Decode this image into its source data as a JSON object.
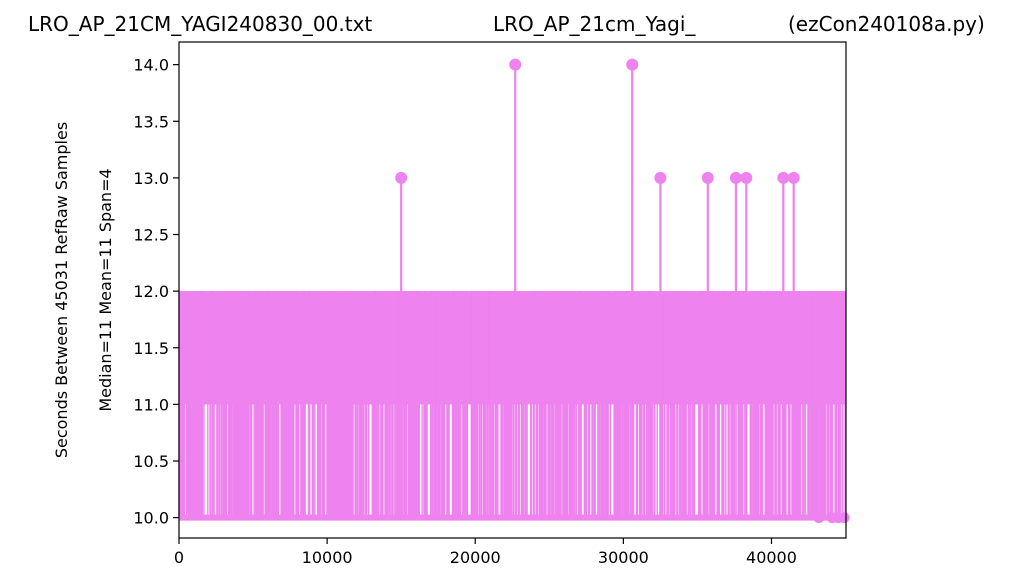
{
  "header": {
    "title_left": "LRO_AP_21CM_YAGI240830_00.txt",
    "title_center": "LRO_AP_21cm_Yagi_",
    "title_right": "(ezCon240108a.py)"
  },
  "colors": {
    "series": "#ee82ee",
    "axis": "#000000",
    "background": "#ffffff"
  },
  "chart_data": {
    "type": "line",
    "title": "LRO_AP_21CM_YAGI240830_00.txt LRO_AP_21cm_Yagi_ (ezCon240108a.py)",
    "ylabel_line1": "Seconds Between 45031 RefRaw Samples",
    "ylabel_line2": "Median=11  Mean=11  Span=4",
    "xlabel": "",
    "xlim": [
      0,
      45031
    ],
    "ylim": [
      9.82,
      14.2
    ],
    "xticks": [
      0,
      10000,
      20000,
      30000,
      40000
    ],
    "xtick_labels": [
      "0",
      "10000",
      "20000",
      "30000",
      "40000"
    ],
    "yticks": [
      10.0,
      10.5,
      11.0,
      11.5,
      12.0,
      12.5,
      13.0,
      13.5,
      14.0
    ],
    "ytick_labels": [
      "10.0",
      "10.5",
      "11.0",
      "11.5",
      "12.0",
      "12.5",
      "13.0",
      "13.5",
      "14.0"
    ],
    "grid": false,
    "legend": "none",
    "sample_count": 45031,
    "baseline_range": [
      10,
      12
    ],
    "dense_band": [
      11,
      12
    ],
    "outliers": [
      {
        "x": 15000,
        "y": 13
      },
      {
        "x": 22700,
        "y": 14
      },
      {
        "x": 30600,
        "y": 14
      },
      {
        "x": 32500,
        "y": 13
      },
      {
        "x": 35700,
        "y": 13
      },
      {
        "x": 37600,
        "y": 13
      },
      {
        "x": 38300,
        "y": 13
      },
      {
        "x": 40800,
        "y": 13
      },
      {
        "x": 41500,
        "y": 13
      }
    ],
    "low_markers": [
      {
        "x": 43200,
        "y": 10
      },
      {
        "x": 44100,
        "y": 10
      },
      {
        "x": 44500,
        "y": 10
      },
      {
        "x": 44900,
        "y": 10
      }
    ]
  }
}
